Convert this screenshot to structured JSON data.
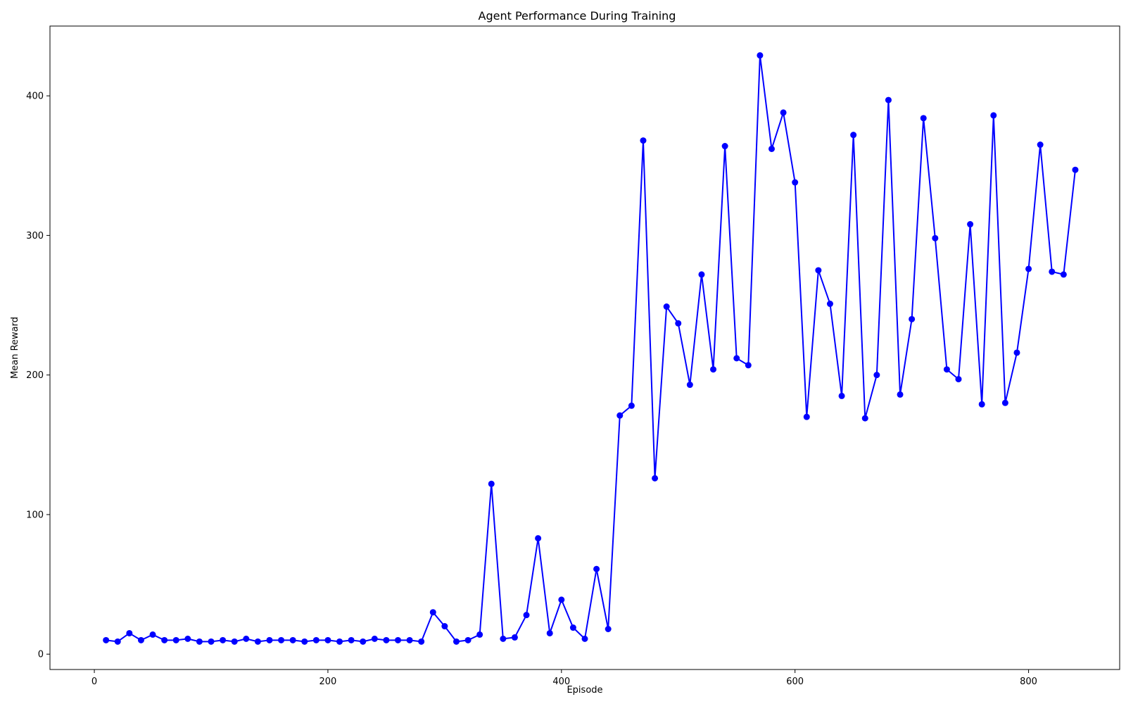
{
  "chart_data": {
    "type": "line",
    "title": "Agent Performance During Training",
    "xlabel": "Episode",
    "ylabel": "Mean Reward",
    "xlim": [
      -38,
      878
    ],
    "ylim": [
      -11,
      450
    ],
    "xticks": [
      0,
      200,
      400,
      600,
      800
    ],
    "yticks": [
      0,
      100,
      200,
      300,
      400
    ],
    "grid": false,
    "legend": "none",
    "series": [
      {
        "color": "#0000ff",
        "marker": "circle",
        "x": [
          10,
          20,
          30,
          40,
          50,
          60,
          70,
          80,
          90,
          100,
          110,
          120,
          130,
          140,
          150,
          160,
          170,
          180,
          190,
          200,
          210,
          220,
          230,
          240,
          250,
          260,
          270,
          280,
          290,
          300,
          310,
          320,
          330,
          340,
          350,
          360,
          370,
          380,
          390,
          400,
          410,
          420,
          430,
          440,
          450,
          460,
          470,
          480,
          490,
          500,
          510,
          520,
          530,
          540,
          550,
          560,
          570,
          580,
          590,
          600,
          610,
          620,
          630,
          640,
          650,
          660,
          670,
          680,
          690,
          700,
          710,
          720,
          730,
          740,
          750,
          760,
          770,
          780,
          790,
          800,
          810,
          820,
          830,
          840
        ],
        "values": [
          10,
          9,
          15,
          10,
          14,
          10,
          10,
          11,
          9,
          9,
          10,
          9,
          11,
          9,
          10,
          10,
          10,
          9,
          10,
          10,
          9,
          10,
          9,
          11,
          10,
          10,
          10,
          9,
          30,
          20,
          9,
          10,
          14,
          122,
          11,
          12,
          28,
          83,
          15,
          39,
          19,
          11,
          61,
          18,
          171,
          178,
          368,
          126,
          249,
          237,
          193,
          272,
          204,
          364,
          212,
          207,
          429,
          362,
          388,
          338,
          170,
          275,
          251,
          185,
          372,
          169,
          200,
          397,
          186,
          240,
          384,
          298,
          204,
          197,
          308,
          179,
          386,
          180,
          216,
          276,
          365,
          274,
          272,
          347
        ]
      }
    ]
  }
}
